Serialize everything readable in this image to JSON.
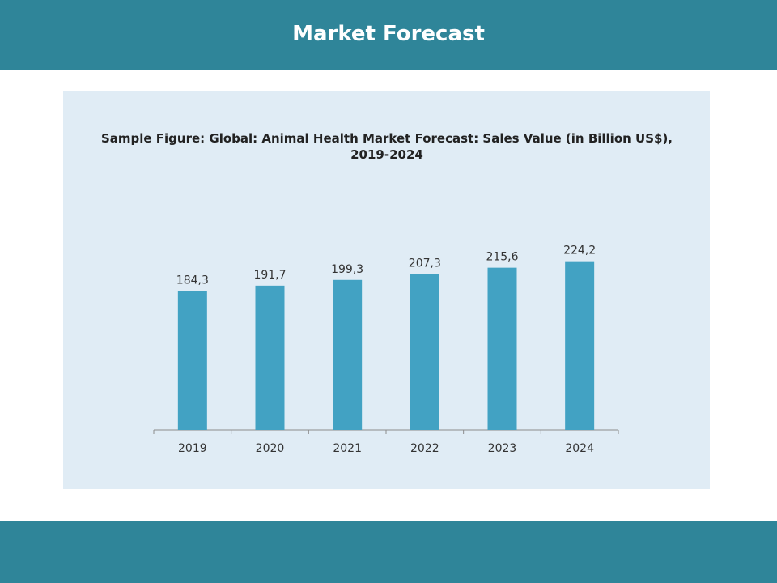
{
  "header": {
    "title": "Market Forecast"
  },
  "colors": {
    "band": "#2f8599",
    "panel": "#e0ecf5",
    "bar": "#42a2c3",
    "axis": "#8c8c8c"
  },
  "chart_data": {
    "type": "bar",
    "title": "Sample Figure:  Global: Animal Health Market Forecast: Sales Value (in Billion US$), 2019-2024",
    "categories": [
      "2019",
      "2020",
      "2021",
      "2022",
      "2023",
      "2024"
    ],
    "values": [
      184.3,
      191.7,
      199.3,
      207.3,
      215.6,
      224.2
    ],
    "value_labels": [
      "184,3",
      "191,7",
      "199,3",
      "207,3",
      "215,6",
      "224,2"
    ],
    "xlabel": "",
    "ylabel": "",
    "ylim": [
      0,
      240
    ],
    "grid": false,
    "legend": "none"
  }
}
